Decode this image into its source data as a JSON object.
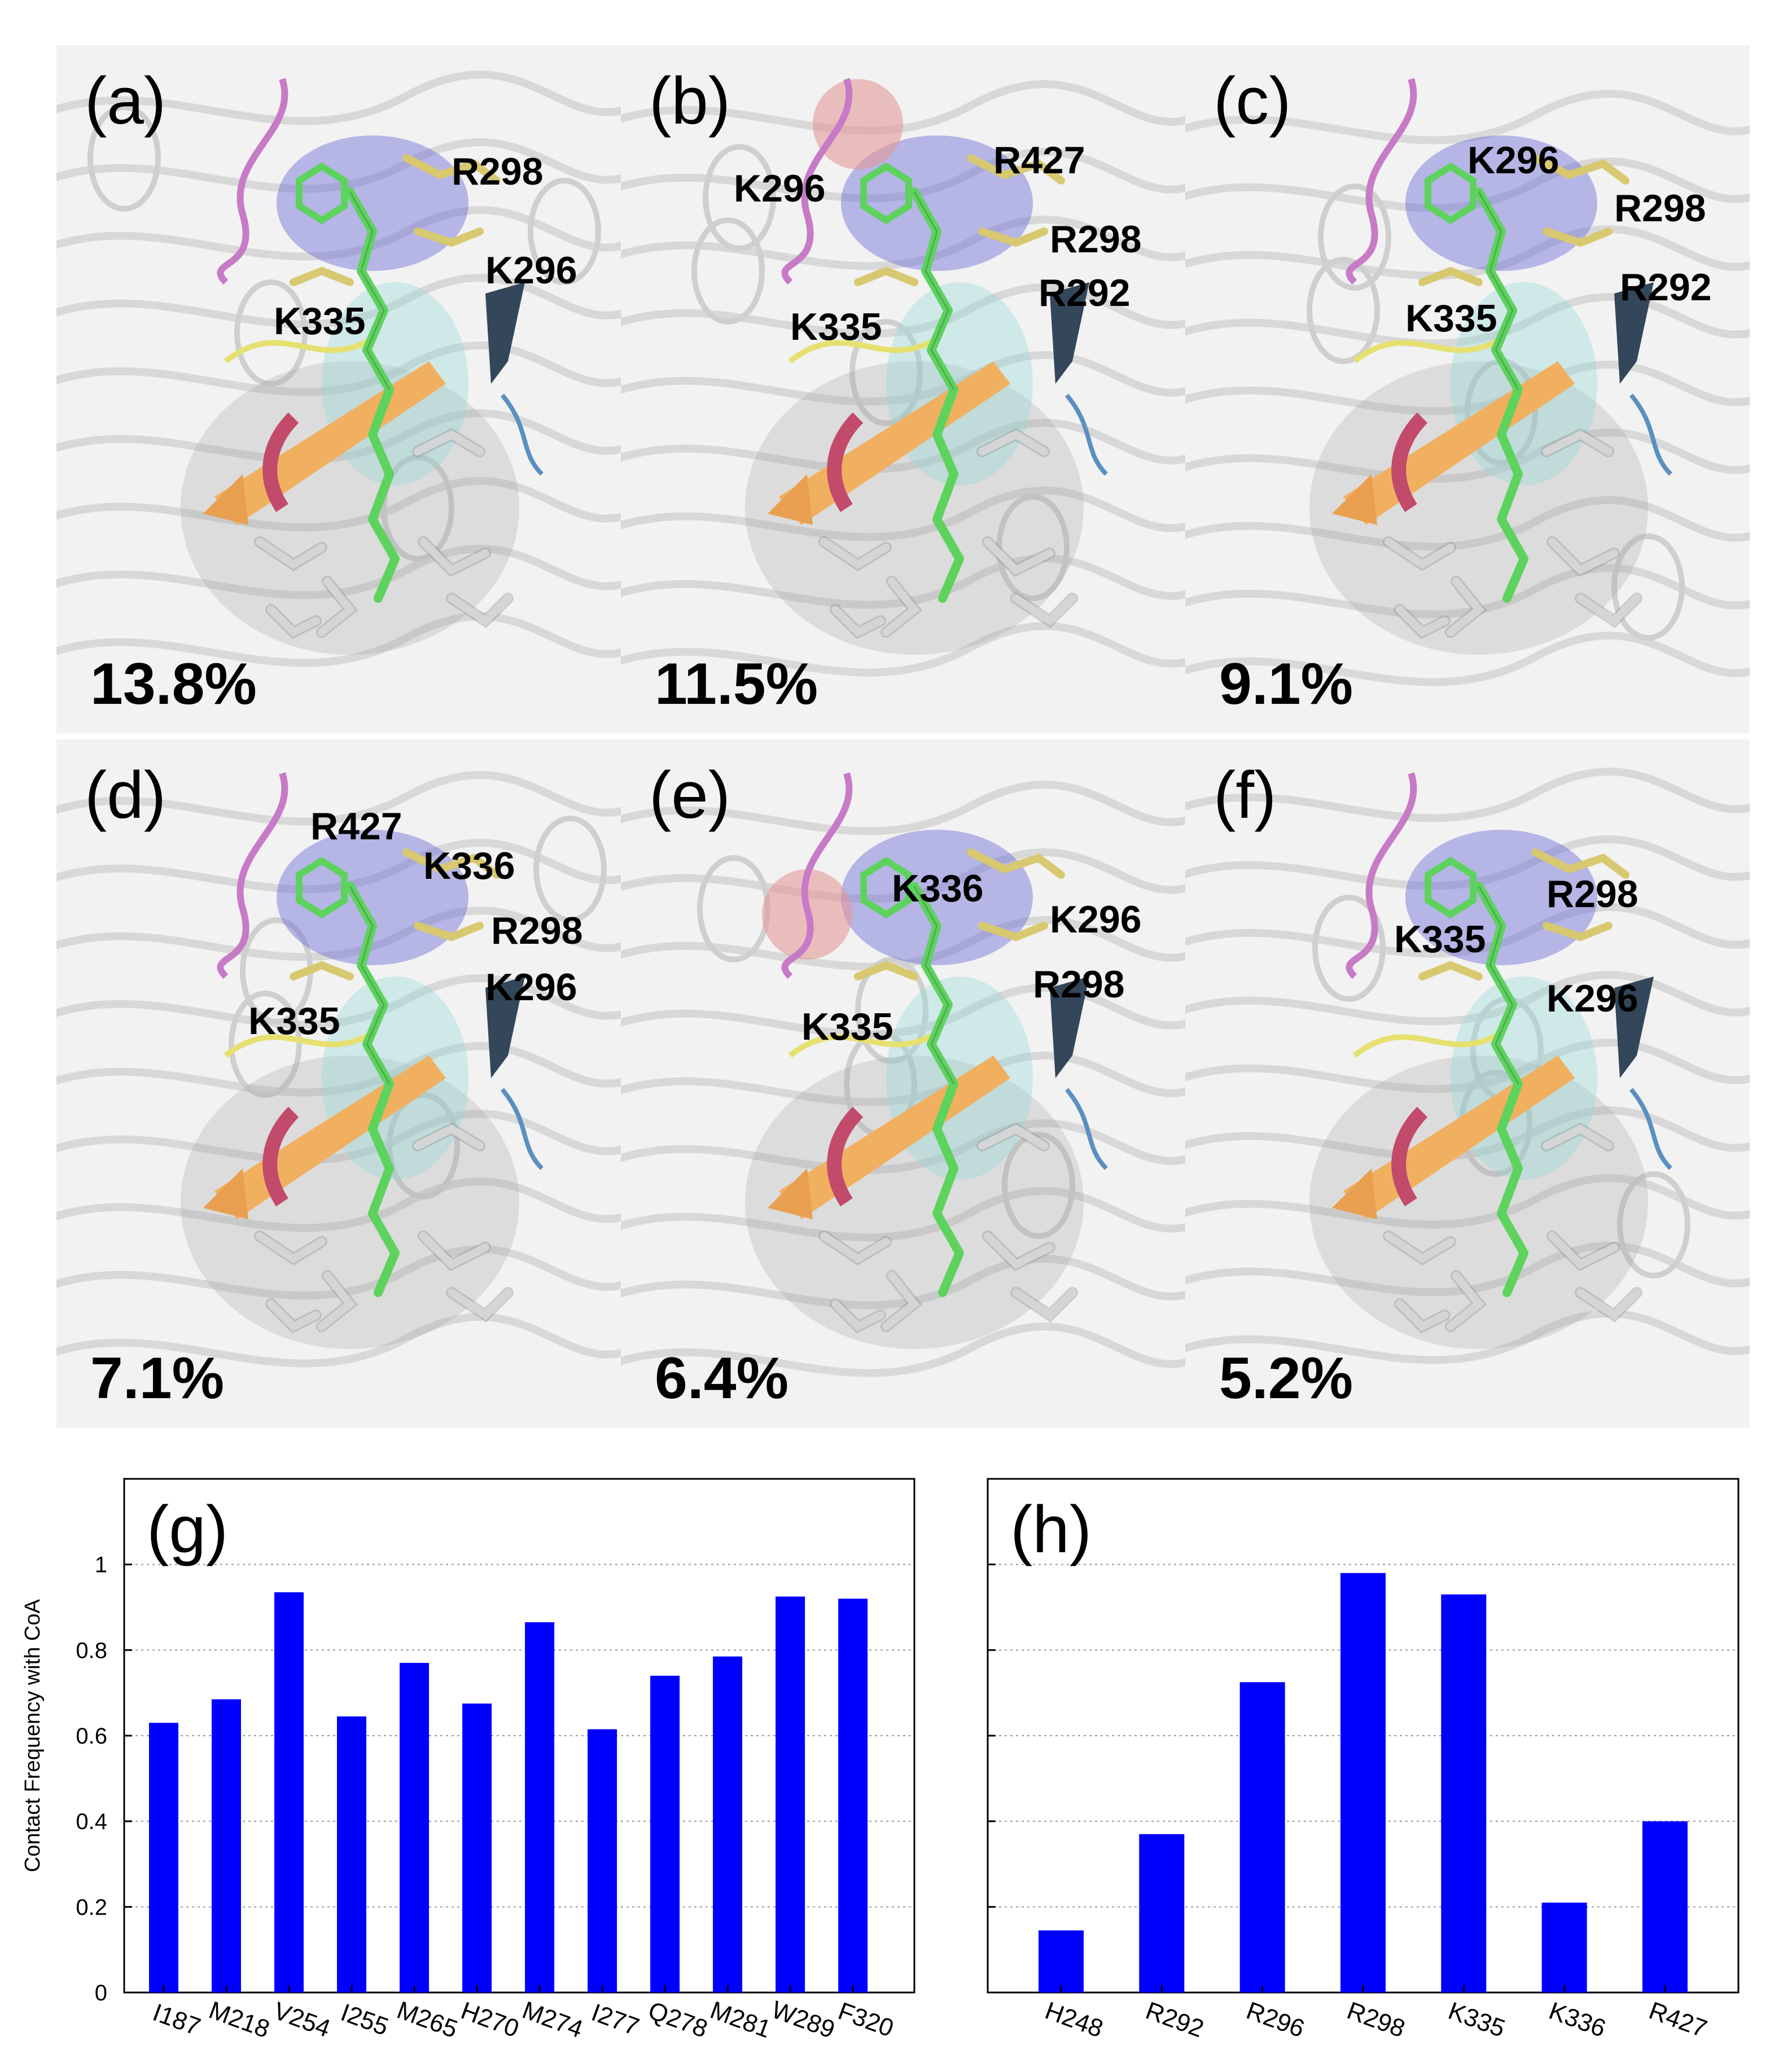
{
  "panels": [
    {
      "letter": "(a)",
      "percent": "13.8%",
      "labels": [
        "R298",
        "K296",
        "K335"
      ]
    },
    {
      "letter": "(b)",
      "percent": "11.5%",
      "labels": [
        "R427",
        "K296",
        "R298",
        "R292",
        "K335"
      ]
    },
    {
      "letter": "(c)",
      "percent": "9.1%",
      "labels": [
        "K296",
        "R298",
        "R292",
        "K335"
      ]
    },
    {
      "letter": "(d)",
      "percent": "7.1%",
      "labels": [
        "R427",
        "K336",
        "R298",
        "K296",
        "K335"
      ]
    },
    {
      "letter": "(e)",
      "percent": "6.4%",
      "labels": [
        "K336",
        "K296",
        "R298",
        "K335"
      ]
    },
    {
      "letter": "(f)",
      "percent": "5.2%",
      "labels": [
        "R298",
        "K335",
        "K296"
      ]
    }
  ],
  "colors": {
    "bar": "#0000ff",
    "grid": "#999999",
    "ligand": "#5dd35d",
    "residue": "#d8c870",
    "highlight_blue": "#6b6bd8",
    "highlight_cyan": "#8fd6d6",
    "strand_orange": "#f0b060"
  },
  "chart_data": [
    {
      "type": "bar",
      "panel": "(g)",
      "ylabel": "Contact Frequency with CoA",
      "ylim": [
        0,
        1.2
      ],
      "yticks": [
        "0",
        "0.2",
        "0.4",
        "0.6",
        "0.8",
        "1"
      ],
      "grid": "horizontal dotted",
      "categories": [
        "I187",
        "M218",
        "V254",
        "I255",
        "M265",
        "H270",
        "M274",
        "I277",
        "Q278",
        "M281",
        "W289",
        "F320"
      ],
      "values": [
        0.63,
        0.685,
        0.935,
        0.645,
        0.77,
        0.675,
        0.865,
        0.615,
        0.74,
        0.785,
        0.925,
        0.92
      ]
    },
    {
      "type": "bar",
      "panel": "(h)",
      "ylim": [
        0,
        1.2
      ],
      "grid": "horizontal dotted",
      "categories": [
        "H248",
        "R292",
        "R296",
        "R298",
        "K335",
        "K336",
        "R427"
      ],
      "values": [
        0.145,
        0.37,
        0.725,
        0.98,
        0.93,
        0.21,
        0.4
      ]
    }
  ]
}
